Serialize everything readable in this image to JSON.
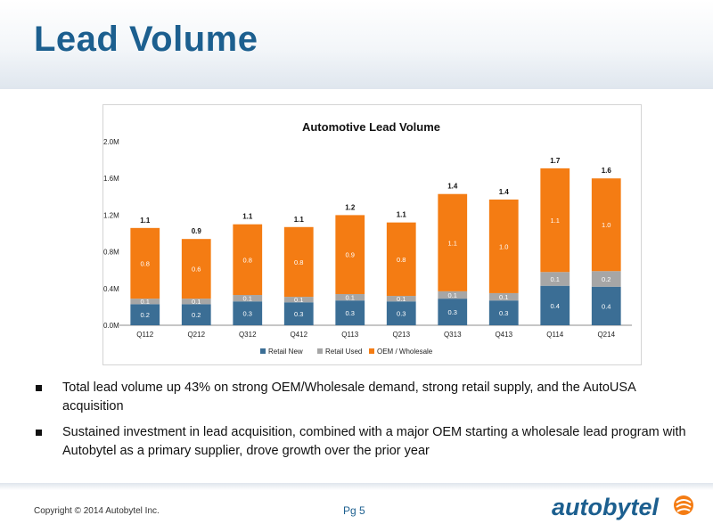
{
  "header": {
    "title": "Lead Volume"
  },
  "chart_data": {
    "type": "bar",
    "stacked": true,
    "title": "Automotive Lead Volume",
    "categories": [
      "Q112",
      "Q212",
      "Q312",
      "Q412",
      "Q113",
      "Q213",
      "Q313",
      "Q413",
      "Q114",
      "Q214"
    ],
    "series": [
      {
        "name": "Retail New",
        "color": "#3b6e95",
        "values": [
          0.23,
          0.23,
          0.26,
          0.25,
          0.27,
          0.26,
          0.29,
          0.27,
          0.43,
          0.42
        ],
        "labels": [
          "0.2",
          "0.2",
          "0.3",
          "0.3",
          "0.3",
          "0.3",
          "0.3",
          "0.3",
          "0.4",
          "0.4"
        ]
      },
      {
        "name": "Retail Used",
        "color": "#a6a6a6",
        "values": [
          0.06,
          0.06,
          0.07,
          0.06,
          0.07,
          0.06,
          0.08,
          0.08,
          0.15,
          0.17
        ],
        "labels": [
          "0.1",
          "0.1",
          "0.1",
          "0.1",
          "0.1",
          "0.1",
          "0.1",
          "0.1",
          "0.1",
          "0.2"
        ]
      },
      {
        "name": "OEM / Wholesale",
        "color": "#f47c13",
        "values": [
          0.77,
          0.65,
          0.77,
          0.76,
          0.86,
          0.8,
          1.06,
          1.02,
          1.13,
          1.01
        ],
        "labels": [
          "0.8",
          "0.6",
          "0.8",
          "0.8",
          "0.9",
          "0.8",
          "1.1",
          "1.0",
          "1.1",
          "1.0"
        ]
      }
    ],
    "totals": [
      "1.1",
      "0.9",
      "1.1",
      "1.1",
      "1.2",
      "1.1",
      "1.4",
      "1.4",
      "1.7",
      "1.6"
    ],
    "y_ticks": [
      0,
      0.4,
      0.8,
      1.2,
      1.6,
      2.0
    ],
    "y_tick_labels": [
      "0.0M",
      "0.4M",
      "0.8M",
      "1.2M",
      "1.6M",
      "2.0M"
    ],
    "ylim": [
      0,
      2.0
    ],
    "legend_position": "bottom",
    "grid": false
  },
  "bullets": [
    "Total lead volume up 43% on strong OEM/Wholesale demand, strong retail supply, and the AutoUSA acquisition",
    "Sustained investment in lead acquisition, combined with a major OEM starting a wholesale lead program with Autobytel as a primary supplier, drove growth over the prior year"
  ],
  "footer": {
    "copyright": "Copyright © 2014 Autobytel Inc.",
    "page_number": "Pg 5",
    "logo_text": "autobytel"
  }
}
